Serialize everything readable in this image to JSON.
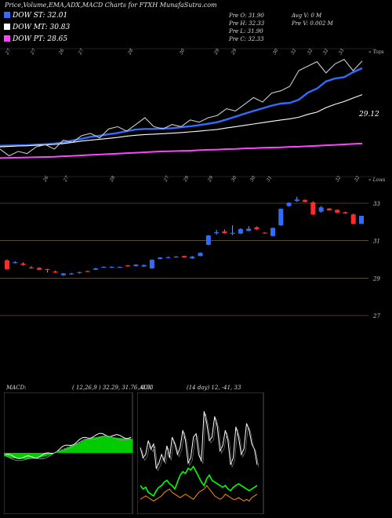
{
  "header": {
    "title": "Price,Volume,EMA,ADX,MACD Charts for FTXH MunafaSutra.com",
    "legend": [
      {
        "label": "DOW ST: 32.01",
        "color": "#2f6cff"
      },
      {
        "label": "DOW MT: 30.83",
        "color": "#ffffff"
      },
      {
        "label": "DOW PT: 28.65",
        "color": "#ff44ff"
      }
    ],
    "stats_left": [
      "Pre O: 31.90",
      "Pre H: 32.33",
      "Pre L: 31.90",
      "Pre C: 32.33"
    ],
    "stats_right": [
      "Avg V: 0 M",
      "Pre V: 0.002 M"
    ]
  },
  "top_panel": {
    "top_right_label": "« Tops",
    "bottom_right_label": "« Lows",
    "level_label": "29.12",
    "top_dates": [
      "27",
      "27",
      "26",
      "27",
      "28",
      "30",
      "29",
      "29",
      "30",
      "32",
      "32",
      "32",
      "33"
    ],
    "bottom_dates": [
      "26",
      "27",
      "28",
      "27",
      "29",
      "29",
      "30",
      "30",
      "31",
      "32",
      "32"
    ]
  },
  "chart_data": [
    {
      "type": "line",
      "title": "Price,Volume,EMA,ADX,MACD Charts for FTXH MunafaSutra.com",
      "series": [
        {
          "name": "DOW ST: 32.01",
          "color": "#2f6cff",
          "values": [
            28.55,
            28.56,
            28.57,
            28.58,
            28.6,
            28.62,
            28.65,
            28.7,
            28.78,
            28.86,
            28.95,
            29.0,
            29.06,
            29.12,
            29.2,
            29.27,
            29.3,
            29.3,
            29.32,
            29.33,
            29.38,
            29.42,
            29.47,
            29.53,
            29.6,
            29.72,
            29.85,
            29.98,
            30.1,
            30.22,
            30.34,
            30.43,
            30.46,
            30.6,
            30.92,
            31.1,
            31.42,
            31.55,
            31.61,
            31.83,
            32.01
          ]
        },
        {
          "name": "DOW MT: 30.83",
          "color": "#ffffff",
          "values": [
            28.5,
            28.52,
            28.54,
            28.55,
            28.57,
            28.59,
            28.61,
            28.65,
            28.7,
            28.76,
            28.8,
            28.84,
            28.88,
            28.92,
            28.98,
            29.02,
            29.05,
            29.07,
            29.09,
            29.11,
            29.14,
            29.17,
            29.2,
            29.24,
            29.28,
            29.34,
            29.4,
            29.46,
            29.52,
            29.58,
            29.64,
            29.7,
            29.75,
            29.82,
            29.95,
            30.05,
            30.25,
            30.4,
            30.52,
            30.68,
            30.83
          ]
        },
        {
          "name": "DOW PT: 28.65",
          "color": "#ff44ff",
          "values": [
            28.0,
            28.01,
            28.02,
            28.03,
            28.04,
            28.05,
            28.06,
            28.08,
            28.1,
            28.12,
            28.14,
            28.16,
            28.18,
            28.2,
            28.22,
            28.24,
            28.26,
            28.28,
            28.3,
            28.31,
            28.32,
            28.33,
            28.35,
            28.37,
            28.38,
            28.4,
            28.41,
            28.43,
            28.44,
            28.46,
            28.47,
            28.48,
            28.5,
            28.51,
            28.53,
            28.55,
            28.57,
            28.59,
            28.61,
            28.63,
            28.65
          ]
        },
        {
          "name": "",
          "color": "#cccccc",
          "values": [
            28.4,
            28.1,
            28.3,
            28.2,
            28.5,
            28.6,
            28.4,
            28.8,
            28.7,
            29.0,
            29.1,
            28.9,
            29.3,
            29.4,
            29.2,
            29.5,
            29.8,
            29.4,
            29.3,
            29.5,
            29.4,
            29.7,
            29.6,
            29.8,
            29.9,
            30.2,
            30.1,
            30.4,
            30.7,
            30.5,
            30.9,
            31.0,
            31.2,
            31.9,
            32.1,
            32.3,
            31.8,
            32.2,
            32.4,
            31.9,
            32.33
          ]
        }
      ]
    },
    {
      "type": "bar",
      "title": "",
      "yticks": [
        "33",
        "31",
        "29",
        "27"
      ],
      "candles": [
        {
          "o": 29.95,
          "c": 29.48,
          "h": 30.0,
          "l": 29.45
        },
        {
          "o": 29.82,
          "c": 29.85,
          "h": 29.9,
          "l": 29.78
        },
        {
          "o": 29.78,
          "c": 29.7,
          "h": 29.85,
          "l": 29.66
        },
        {
          "o": 29.57,
          "c": 29.56,
          "h": 29.64,
          "l": 29.5
        },
        {
          "o": 29.55,
          "c": 29.44,
          "h": 29.58,
          "l": 29.42
        },
        {
          "o": 29.48,
          "c": 29.43,
          "h": 29.5,
          "l": 29.3
        },
        {
          "o": 29.35,
          "c": 29.32,
          "h": 29.4,
          "l": 29.28
        },
        {
          "o": 29.15,
          "c": 29.25,
          "h": 29.27,
          "l": 29.13
        },
        {
          "o": 29.2,
          "c": 29.25,
          "h": 29.28,
          "l": 29.18
        },
        {
          "o": 29.27,
          "c": 29.32,
          "h": 29.34,
          "l": 29.24
        },
        {
          "o": 29.38,
          "c": 29.36,
          "h": 29.4,
          "l": 29.32
        },
        {
          "o": 29.45,
          "c": 29.52,
          "h": 29.55,
          "l": 29.43
        },
        {
          "o": 29.6,
          "c": 29.6,
          "h": 29.63,
          "l": 29.57
        },
        {
          "o": 29.6,
          "c": 29.6,
          "h": 29.63,
          "l": 29.57
        },
        {
          "o": 29.6,
          "c": 29.6,
          "h": 29.62,
          "l": 29.58
        },
        {
          "o": 29.68,
          "c": 29.64,
          "h": 29.7,
          "l": 29.6
        },
        {
          "o": 29.64,
          "c": 29.72,
          "h": 29.74,
          "l": 29.62
        },
        {
          "o": 29.62,
          "c": 29.7,
          "h": 29.72,
          "l": 29.6
        },
        {
          "o": 29.52,
          "c": 29.98,
          "h": 30.0,
          "l": 29.5
        },
        {
          "o": 30.02,
          "c": 30.1,
          "h": 30.12,
          "l": 30.0
        },
        {
          "o": 30.08,
          "c": 30.12,
          "h": 30.14,
          "l": 30.06
        },
        {
          "o": 30.15,
          "c": 30.15,
          "h": 30.18,
          "l": 30.12
        },
        {
          "o": 30.18,
          "c": 30.1,
          "h": 30.2,
          "l": 30.08
        },
        {
          "o": 30.05,
          "c": 30.15,
          "h": 30.18,
          "l": 30.03
        },
        {
          "o": 30.18,
          "c": 30.35,
          "h": 30.37,
          "l": 30.16
        },
        {
          "o": 30.78,
          "c": 31.28,
          "h": 31.3,
          "l": 30.76
        },
        {
          "o": 31.45,
          "c": 31.45,
          "h": 31.58,
          "l": 31.32
        },
        {
          "o": 31.5,
          "c": 31.4,
          "h": 31.6,
          "l": 31.38
        },
        {
          "o": 31.37,
          "c": 31.42,
          "h": 31.82,
          "l": 31.3
        },
        {
          "o": 31.38,
          "c": 31.62,
          "h": 31.66,
          "l": 31.36
        },
        {
          "o": 31.52,
          "c": 31.64,
          "h": 31.78,
          "l": 31.5
        },
        {
          "o": 31.72,
          "c": 31.6,
          "h": 31.76,
          "l": 31.58
        },
        {
          "o": 31.43,
          "c": 31.42,
          "h": 31.46,
          "l": 31.4
        },
        {
          "o": 31.25,
          "c": 31.68,
          "h": 31.7,
          "l": 31.23
        },
        {
          "o": 31.82,
          "c": 32.7,
          "h": 32.72,
          "l": 31.8
        },
        {
          "o": 32.85,
          "c": 33.03,
          "h": 33.05,
          "l": 32.83
        },
        {
          "o": 33.12,
          "c": 33.2,
          "h": 33.35,
          "l": 33.08
        },
        {
          "o": 33.18,
          "c": 33.07,
          "h": 33.2,
          "l": 33.05
        },
        {
          "o": 33.05,
          "c": 32.4,
          "h": 33.1,
          "l": 32.38
        },
        {
          "o": 32.55,
          "c": 32.78,
          "h": 32.85,
          "l": 32.5
        },
        {
          "o": 32.72,
          "c": 32.62,
          "h": 32.75,
          "l": 32.6
        },
        {
          "o": 32.65,
          "c": 32.5,
          "h": 32.68,
          "l": 32.48
        },
        {
          "o": 32.52,
          "c": 32.45,
          "h": 32.55,
          "l": 32.44
        },
        {
          "o": 32.4,
          "c": 31.9,
          "h": 32.45,
          "l": 31.88
        },
        {
          "o": 31.9,
          "c": 32.33,
          "h": 32.33,
          "l": 31.9
        }
      ]
    },
    {
      "type": "area",
      "title": "",
      "series": [
        {
          "name": "",
          "color": "#00e000",
          "values": [
            -0.2,
            -0.25,
            -0.3,
            -0.32,
            -0.33,
            -0.34,
            -0.35,
            -0.36,
            -0.35,
            -0.34,
            -0.32,
            -0.3,
            -0.27,
            -0.24,
            -0.2,
            -0.15,
            -0.1,
            -0.02,
            0.05,
            0.12,
            0.2,
            0.28,
            0.35,
            0.42,
            0.48,
            0.55,
            0.62,
            0.7,
            0.78,
            0.82,
            0.86,
            0.9,
            0.92,
            0.95,
            0.98,
            0.98,
            0.95,
            0.92,
            0.9,
            0.88,
            0.86,
            0.85,
            0.83,
            0.82,
            0.81
          ]
        }
      ]
    },
    {
      "type": "line",
      "title": "",
      "series": [
        {
          "name": "",
          "color": "#ffffff",
          "values": [
            34,
            28,
            30,
            38,
            33,
            36,
            22,
            25,
            30,
            26,
            35,
            28,
            40,
            36,
            30,
            34,
            44,
            38,
            25,
            28,
            40,
            42,
            30,
            26,
            55,
            48,
            38,
            40,
            52,
            46,
            32,
            35,
            44,
            38,
            24,
            28,
            46,
            40,
            30,
            33,
            48,
            44,
            36,
            33,
            24
          ]
        },
        {
          "name": "",
          "color": "#00ff00",
          "values": [
            12,
            10,
            11,
            8,
            7,
            6,
            9,
            11,
            12,
            14,
            15,
            13,
            12,
            10,
            14,
            18,
            20,
            19,
            22,
            21,
            23,
            20,
            17,
            14,
            12,
            16,
            18,
            15,
            14,
            13,
            12,
            11,
            12,
            10,
            9,
            11,
            12,
            13,
            12,
            11,
            10,
            9,
            10,
            11,
            12
          ]
        },
        {
          "name": "",
          "color": "#ff8c00",
          "values": [
            4,
            5,
            6,
            5,
            4,
            3,
            4,
            5,
            6,
            8,
            9,
            10,
            8,
            7,
            6,
            5,
            6,
            7,
            6,
            5,
            4,
            6,
            8,
            9,
            10,
            12,
            10,
            8,
            6,
            5,
            4,
            5,
            7,
            6,
            5,
            4,
            4,
            5,
            4,
            3,
            4,
            3,
            5,
            6,
            7
          ]
        }
      ]
    }
  ],
  "macd_panel": {
    "label": "MACD:",
    "params": "( 12,26,9 ) 32.29, 31.76, 0.53"
  },
  "adx_panel": {
    "label": "ADX",
    "params": "(14 day) 12, -41, 33"
  }
}
